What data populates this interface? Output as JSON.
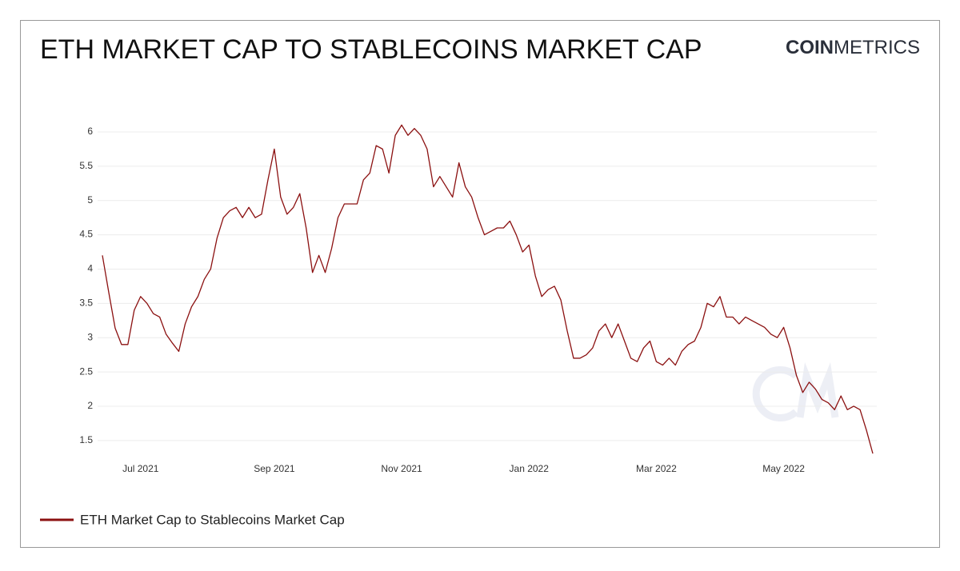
{
  "logo": {
    "bold": "COIN",
    "light": "METRICS"
  },
  "chart_data": {
    "type": "line",
    "title": "ETH MARKET CAP TO STABLECOINS MARKET CAP",
    "categories": [
      null,
      null,
      null,
      null,
      null,
      null,
      "Jul 2021",
      null,
      null,
      null,
      null,
      null,
      null,
      null,
      null,
      null,
      null,
      null,
      null,
      null,
      null,
      null,
      null,
      null,
      null,
      null,
      null,
      "Sep 2021",
      null,
      null,
      null,
      null,
      null,
      null,
      null,
      null,
      null,
      null,
      null,
      null,
      null,
      null,
      null,
      null,
      null,
      null,
      null,
      "Nov 2021",
      null,
      null,
      null,
      null,
      null,
      null,
      null,
      null,
      null,
      null,
      null,
      null,
      null,
      null,
      null,
      null,
      null,
      null,
      null,
      "Jan 2022",
      null,
      null,
      null,
      null,
      null,
      null,
      null,
      null,
      null,
      null,
      null,
      null,
      null,
      null,
      null,
      null,
      null,
      null,
      null,
      "Mar 2022",
      null,
      null,
      null,
      null,
      null,
      null,
      null,
      null,
      null,
      null,
      null,
      null,
      null,
      null,
      null,
      null,
      null,
      null,
      null,
      "May 2022",
      null,
      null,
      null,
      null,
      null,
      null,
      null,
      null,
      null,
      null,
      null,
      null,
      null,
      null
    ],
    "series": [
      {
        "name": "ETH Market Cap to Stablecoins Market Cap",
        "color": "#8b1010",
        "values": [
          4.2,
          3.66,
          3.14,
          2.9,
          2.9,
          3.4,
          3.6,
          3.5,
          3.35,
          3.3,
          3.05,
          2.92,
          2.8,
          3.2,
          3.45,
          3.6,
          3.85,
          4.0,
          4.45,
          4.75,
          4.85,
          4.9,
          4.75,
          4.9,
          4.75,
          4.8,
          5.3,
          5.75,
          5.05,
          4.8,
          4.9,
          5.1,
          4.6,
          3.95,
          4.2,
          3.95,
          4.3,
          4.75,
          4.95,
          4.95,
          4.95,
          5.3,
          5.4,
          5.8,
          5.75,
          5.4,
          5.95,
          6.1,
          5.95,
          6.05,
          5.95,
          5.75,
          5.2,
          5.35,
          5.2,
          5.05,
          5.55,
          5.2,
          5.05,
          4.75,
          4.5,
          4.55,
          4.6,
          4.6,
          4.7,
          4.5,
          4.25,
          4.35,
          3.9,
          3.6,
          3.7,
          3.75,
          3.55,
          3.1,
          2.7,
          2.7,
          2.75,
          2.85,
          3.1,
          3.2,
          3.0,
          3.2,
          2.95,
          2.7,
          2.65,
          2.85,
          2.95,
          2.65,
          2.6,
          2.7,
          2.6,
          2.8,
          2.9,
          2.95,
          3.15,
          3.5,
          3.45,
          3.6,
          3.3,
          3.3,
          3.2,
          3.3,
          3.25,
          3.2,
          3.15,
          3.05,
          3.0,
          3.15,
          2.85,
          2.45,
          2.2,
          2.35,
          2.25,
          2.1,
          2.05,
          1.95,
          2.15,
          1.95,
          2.0,
          1.95,
          1.65,
          1.31
        ]
      }
    ],
    "ylim": [
      1.3,
      6.25
    ],
    "yticks": [
      1.5,
      2,
      2.5,
      3,
      3.5,
      4,
      4.5,
      5,
      5.5,
      6
    ],
    "grid": true
  }
}
